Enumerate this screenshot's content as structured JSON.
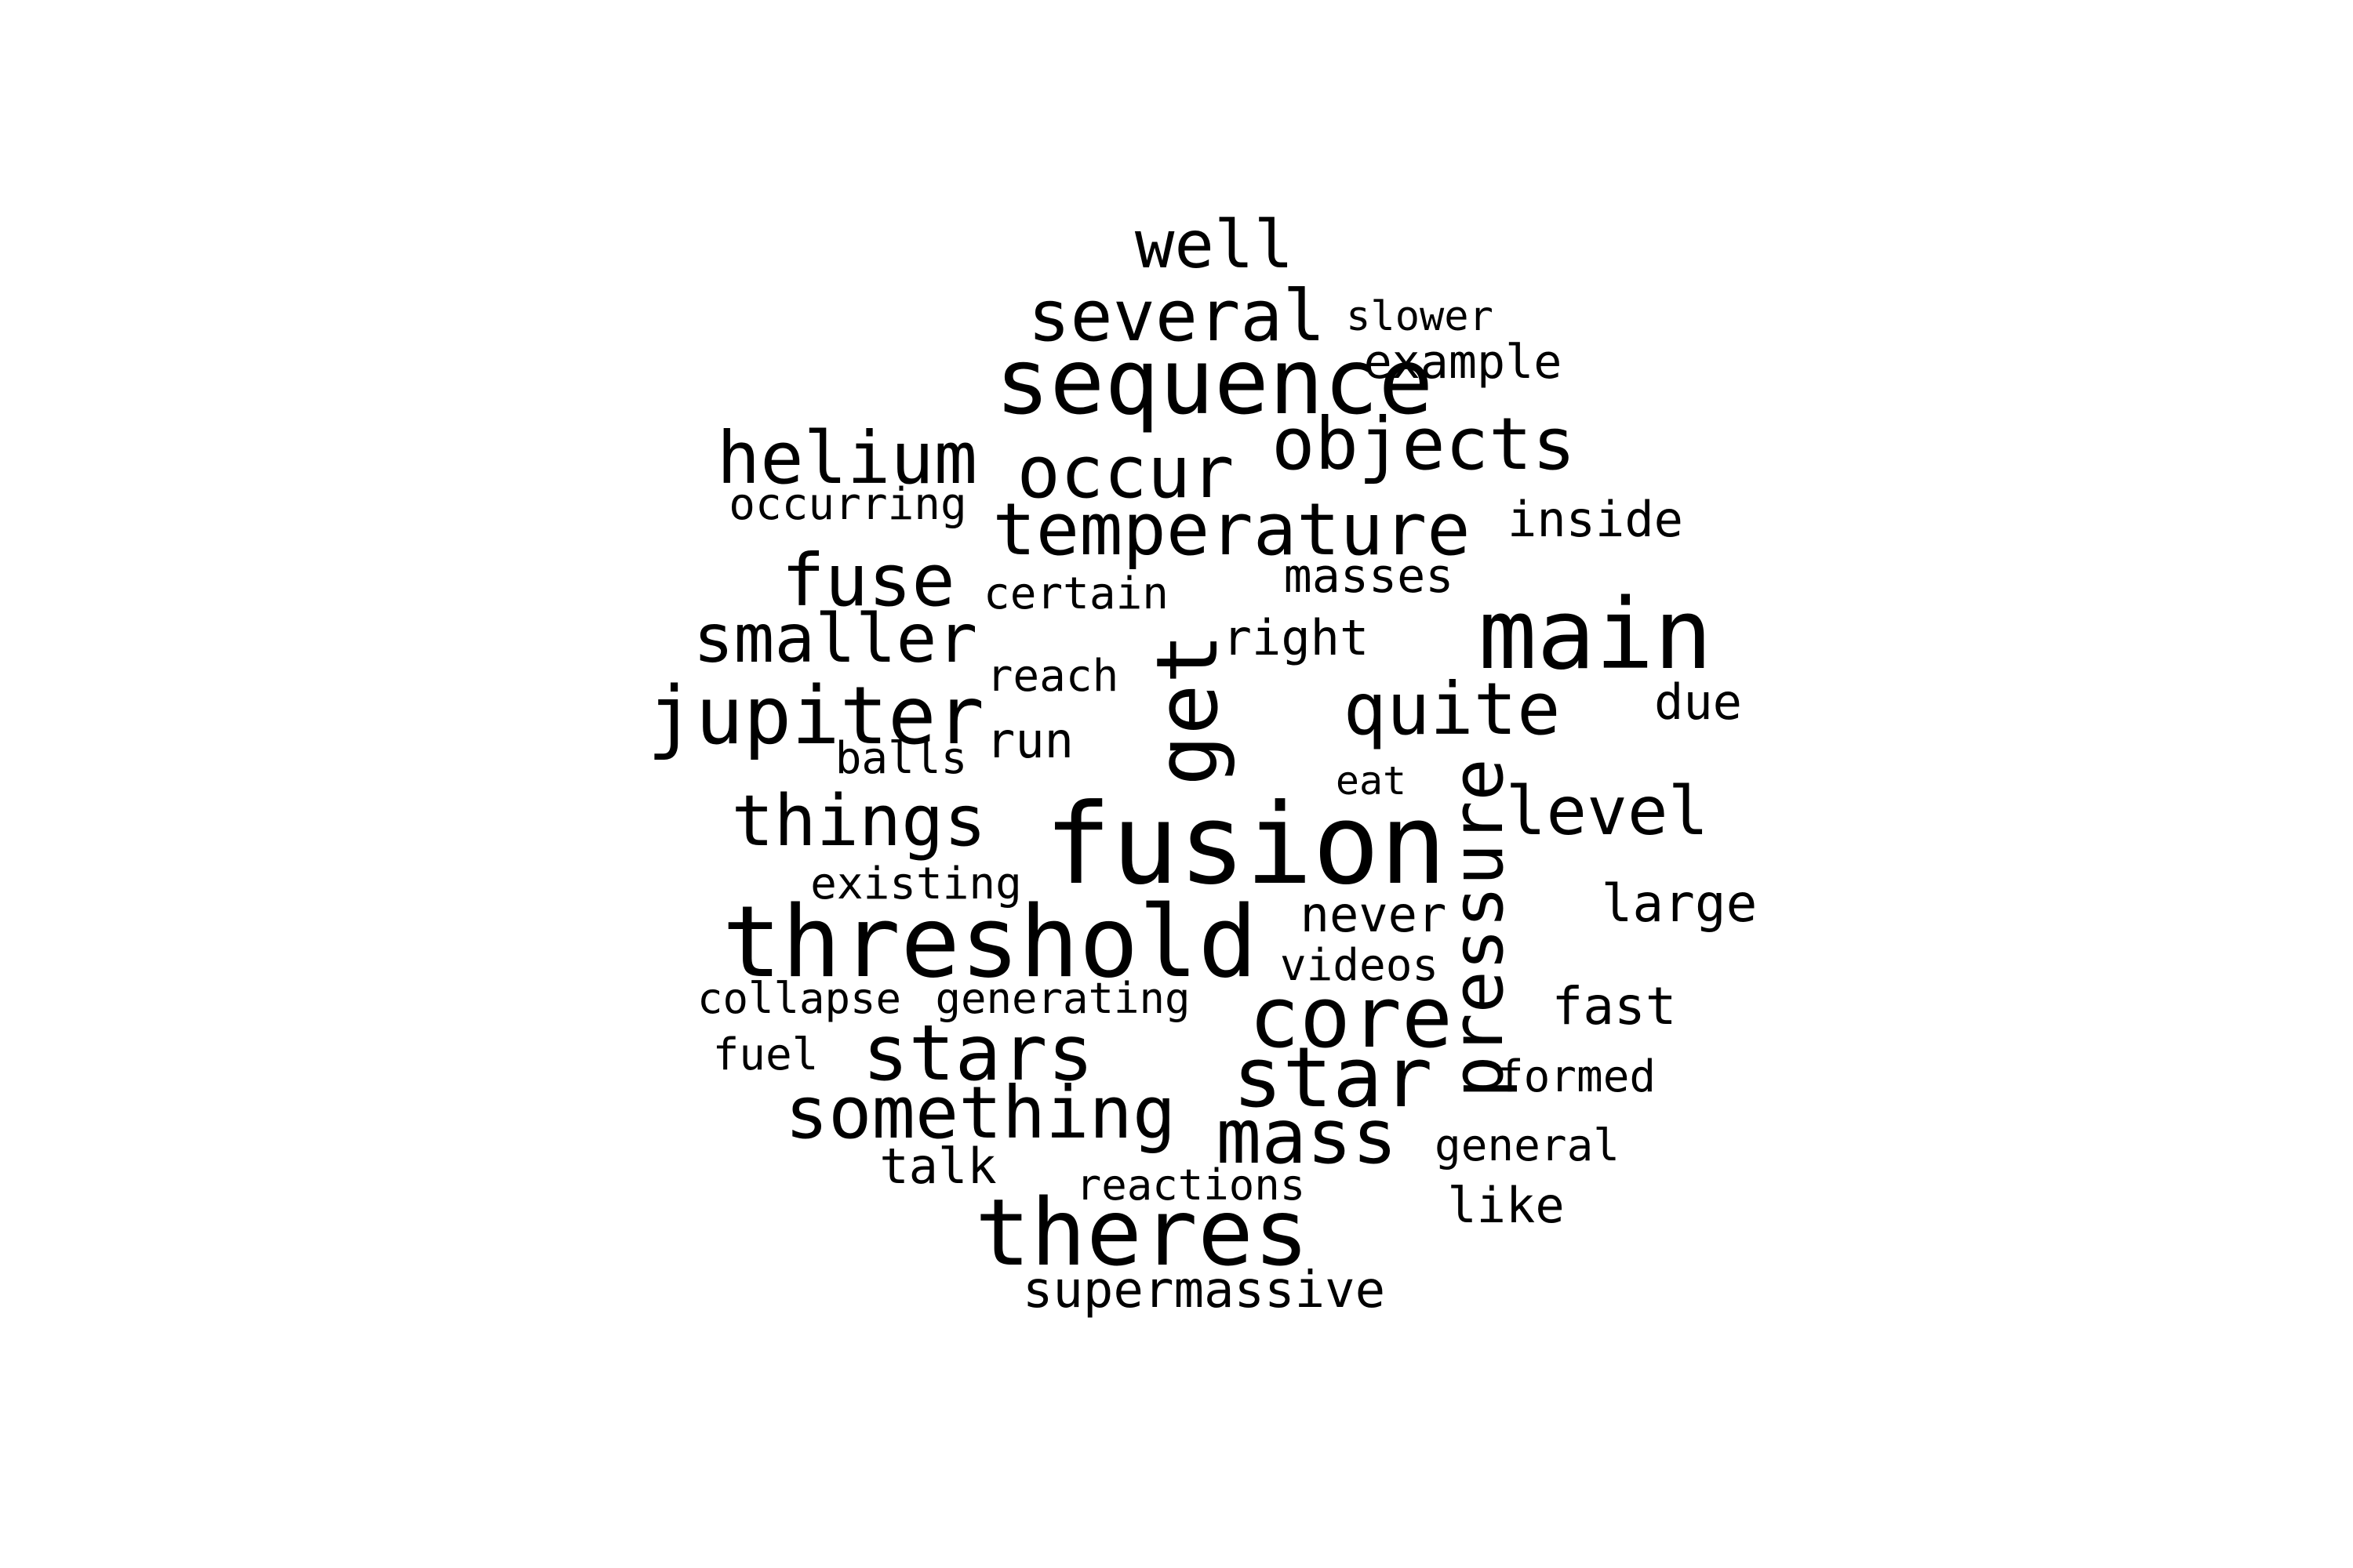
{
  "text_color": "#000000",
  "background": "#ffffff",
  "words": [
    {
      "text": "well",
      "orientation": "horizontal"
    },
    {
      "text": "several",
      "orientation": "horizontal"
    },
    {
      "text": "slower",
      "orientation": "horizontal"
    },
    {
      "text": "sequence",
      "orientation": "horizontal"
    },
    {
      "text": "example",
      "orientation": "horizontal"
    },
    {
      "text": "helium",
      "orientation": "horizontal"
    },
    {
      "text": "occur",
      "orientation": "horizontal"
    },
    {
      "text": "objects",
      "orientation": "horizontal"
    },
    {
      "text": "occurring",
      "orientation": "horizontal"
    },
    {
      "text": "temperature",
      "orientation": "horizontal"
    },
    {
      "text": "inside",
      "orientation": "horizontal"
    },
    {
      "text": "fuse",
      "orientation": "horizontal"
    },
    {
      "text": "certain",
      "orientation": "horizontal"
    },
    {
      "text": "masses",
      "orientation": "horizontal"
    },
    {
      "text": "main",
      "orientation": "horizontal"
    },
    {
      "text": "smaller",
      "orientation": "horizontal"
    },
    {
      "text": "right",
      "orientation": "horizontal"
    },
    {
      "text": "reach",
      "orientation": "horizontal"
    },
    {
      "text": "get",
      "orientation": "vertical"
    },
    {
      "text": "jupiter",
      "orientation": "horizontal"
    },
    {
      "text": "quite",
      "orientation": "horizontal"
    },
    {
      "text": "due",
      "orientation": "horizontal"
    },
    {
      "text": "run",
      "orientation": "horizontal"
    },
    {
      "text": "balls",
      "orientation": "horizontal"
    },
    {
      "text": "eat",
      "orientation": "horizontal"
    },
    {
      "text": "things",
      "orientation": "horizontal"
    },
    {
      "text": "fusion",
      "orientation": "horizontal"
    },
    {
      "text": "pressure",
      "orientation": "vertical"
    },
    {
      "text": "level",
      "orientation": "horizontal"
    },
    {
      "text": "existing",
      "orientation": "horizontal"
    },
    {
      "text": "threshold",
      "orientation": "horizontal"
    },
    {
      "text": "never",
      "orientation": "horizontal"
    },
    {
      "text": "large",
      "orientation": "horizontal"
    },
    {
      "text": "videos",
      "orientation": "horizontal"
    },
    {
      "text": "collapse",
      "orientation": "horizontal"
    },
    {
      "text": "generating",
      "orientation": "horizontal"
    },
    {
      "text": "core",
      "orientation": "horizontal"
    },
    {
      "text": "fast",
      "orientation": "horizontal"
    },
    {
      "text": "stars",
      "orientation": "horizontal"
    },
    {
      "text": "fuel",
      "orientation": "horizontal"
    },
    {
      "text": "star",
      "orientation": "horizontal"
    },
    {
      "text": "formed",
      "orientation": "horizontal"
    },
    {
      "text": "something",
      "orientation": "horizontal"
    },
    {
      "text": "mass",
      "orientation": "horizontal"
    },
    {
      "text": "general",
      "orientation": "horizontal"
    },
    {
      "text": "talk",
      "orientation": "horizontal"
    },
    {
      "text": "reactions",
      "orientation": "horizontal"
    },
    {
      "text": "like",
      "orientation": "horizontal"
    },
    {
      "text": "theres",
      "orientation": "horizontal"
    },
    {
      "text": "supermassive",
      "orientation": "horizontal"
    }
  ]
}
